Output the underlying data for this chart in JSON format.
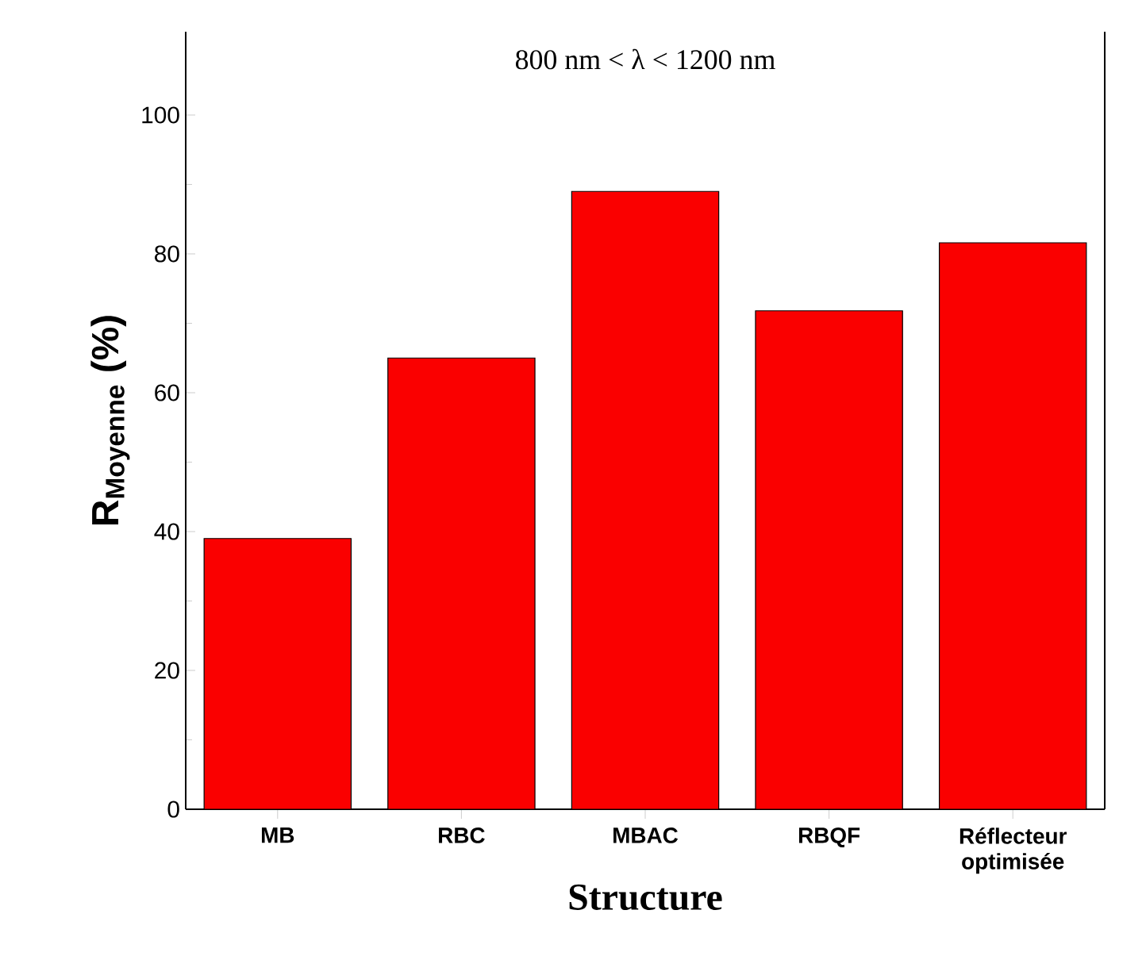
{
  "chart_data": {
    "type": "bar",
    "xlabel": "Structure",
    "ylabel": "R$_{Moyenne}$ (%)",
    "annotations": [
      "800 nm < λ < 1200 nm"
    ],
    "categories": [
      "MB",
      "RBC",
      "MBAC",
      "RBQF",
      "Réflecteur optimisée"
    ],
    "values": [
      39,
      65,
      89,
      71.8,
      81.6
    ],
    "color": "#fa0000",
    "ylim": [
      0,
      112
    ],
    "yticks": [
      0,
      20,
      40,
      60,
      80,
      100
    ],
    "grid": false
  }
}
